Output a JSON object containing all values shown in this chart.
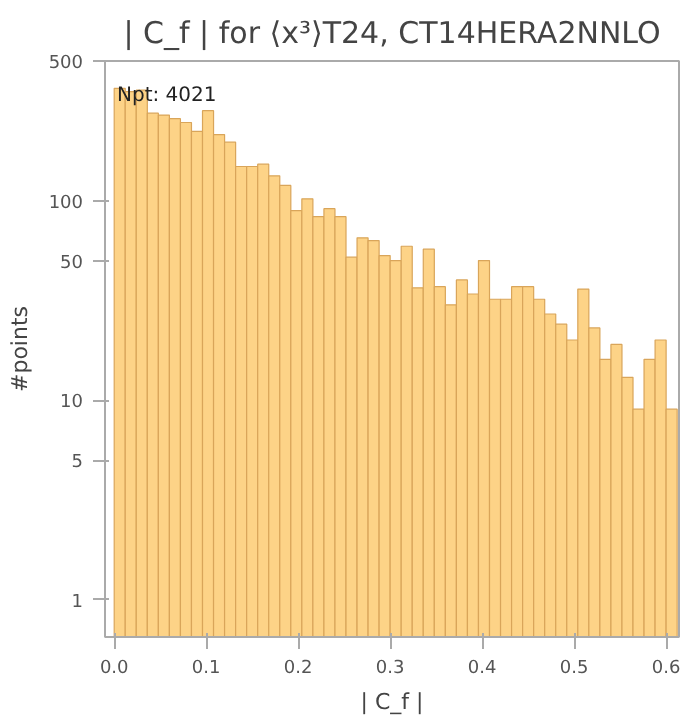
{
  "chart_data": {
    "type": "histogram",
    "title": "| C_f | for ⟨x³⟩T24, CT14HERA2NNLO",
    "xlabel": "| C_f |",
    "ylabel": "#points",
    "annotations": [
      "Npt: 4021"
    ],
    "bins": [
      0,
      0.012,
      0.024,
      0.036,
      0.048,
      0.06,
      0.072,
      0.084,
      0.096,
      0.108,
      0.12,
      0.132,
      0.144,
      0.156,
      0.168,
      0.18,
      0.192,
      0.204,
      0.216,
      0.228,
      0.24,
      0.252,
      0.264,
      0.276,
      0.288,
      0.3,
      0.312,
      0.324,
      0.336,
      0.348,
      0.36,
      0.372,
      0.384,
      0.396,
      0.408,
      0.42,
      0.432,
      0.444,
      0.456,
      0.468,
      0.48,
      0.492,
      0.504,
      0.516,
      0.528,
      0.54,
      0.552,
      0.564,
      0.576,
      0.588,
      0.6,
      0.612
    ],
    "values": [
      365,
      351,
      357,
      274,
      268,
      257,
      246,
      222,
      282,
      214,
      196,
      148,
      148,
      152,
      133,
      119,
      89,
      102,
      83,
      91,
      83,
      52,
      65,
      63,
      53,
      50,
      59,
      36.5,
      57,
      37,
      30,
      40,
      34,
      50,
      32,
      32,
      37,
      37,
      32,
      27,
      24,
      20,
      36,
      23,
      16,
      19,
      13,
      9,
      16,
      20,
      9
    ],
    "color": "#fdd387",
    "log": "y",
    "grid": false,
    "xlim": [
      -0.01,
      0.614
    ],
    "ylim": [
      0.65,
      500
    ],
    "xticks": [
      {
        "value": 0,
        "label": "0.0"
      },
      0.1,
      0.2,
      0.3,
      0.4,
      0.5,
      0.6
    ],
    "yticks": [
      1,
      5,
      10,
      50,
      100,
      500
    ]
  }
}
